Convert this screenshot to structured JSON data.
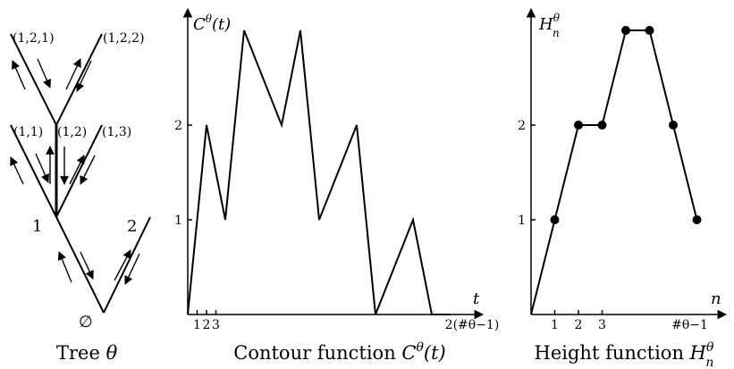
{
  "tree": {
    "labels": {
      "v121": "(1,2,1)",
      "v122": "(1,2,2)",
      "v11": "(1,1)",
      "v12": "(1,2)",
      "v13": "(1,3)",
      "v1": "1",
      "v2": "2",
      "root": "∅"
    },
    "caption": {
      "prefix": "Tree ",
      "var": "θ"
    }
  },
  "contour": {
    "y_axis": {
      "letter": "C",
      "sup": "θ",
      "arg": "(t)"
    },
    "x_axis_label": "t",
    "x_ticks": [
      "1",
      "2",
      "3"
    ],
    "x_end_tick": "2(#θ−1)",
    "y_ticks": [
      "1",
      "2"
    ],
    "caption": {
      "prefix": "Contour function ",
      "letter": "C",
      "sup": "θ",
      "arg": "(t)"
    }
  },
  "height": {
    "y_axis": {
      "letter": "H",
      "sup": "θ",
      "sub": "n"
    },
    "x_axis_label": "n",
    "x_ticks": [
      "1",
      "2",
      "3"
    ],
    "x_end_tick": "#θ−1",
    "y_ticks": [
      "1",
      "2"
    ],
    "caption": {
      "prefix": "Height function ",
      "letter": "H",
      "sup": "θ",
      "sub": "n"
    }
  },
  "chart_data": [
    {
      "type": "line",
      "name": "contour",
      "x": [
        0,
        2,
        4,
        6,
        10,
        12,
        14,
        18,
        20,
        24,
        26,
        28
      ],
      "y": [
        0,
        2,
        1,
        3,
        2,
        3,
        1,
        2,
        0,
        1,
        0,
        0
      ],
      "xlim": [
        0,
        28
      ],
      "ylim": [
        0,
        3
      ]
    },
    {
      "type": "scatter",
      "name": "height",
      "x": [
        0,
        1,
        2,
        3,
        4,
        5,
        6,
        7
      ],
      "y": [
        0,
        1,
        2,
        2,
        3,
        3,
        2,
        1
      ],
      "xlim": [
        0,
        7.5
      ],
      "ylim": [
        0,
        3
      ]
    }
  ]
}
